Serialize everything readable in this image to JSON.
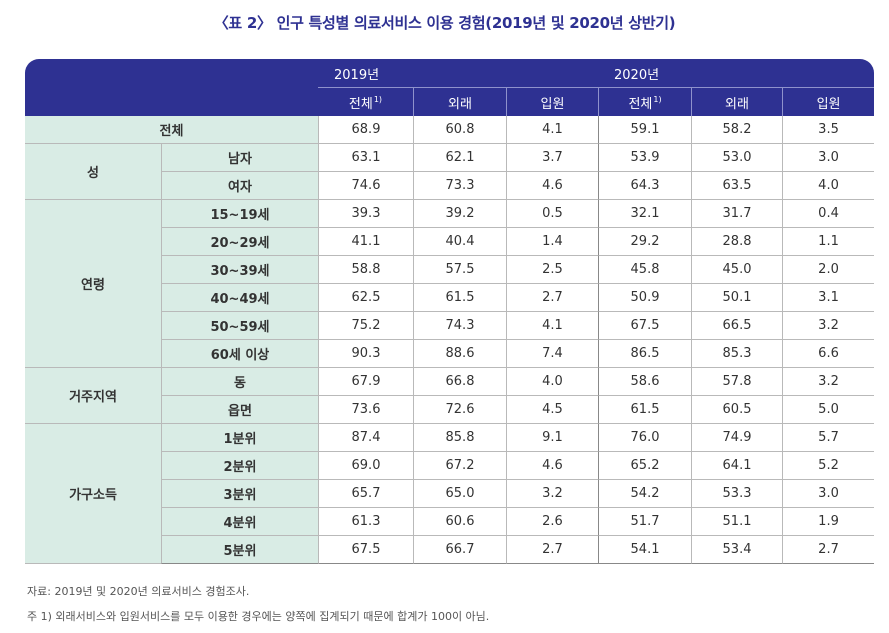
{
  "title": "〈표 2〉 인구 특성별 의료서비스 이용 경험(2019년 및 2020년 상반기)",
  "header": {
    "year_2019": "2019년",
    "year_2020": "2020년",
    "col_total": "전체",
    "col_total_sup": "1)",
    "col_outpatient": "외래",
    "col_inpatient": "입원"
  },
  "rows": {
    "total": {
      "label": "전체",
      "values": [
        "68.9",
        "60.8",
        "4.1",
        "59.1",
        "58.2",
        "3.5"
      ]
    },
    "sex": {
      "label": "성",
      "items": [
        {
          "label": "남자",
          "values": [
            "63.1",
            "62.1",
            "3.7",
            "53.9",
            "53.0",
            "3.0"
          ]
        },
        {
          "label": "여자",
          "values": [
            "74.6",
            "73.3",
            "4.6",
            "64.3",
            "63.5",
            "4.0"
          ]
        }
      ]
    },
    "age": {
      "label": "연령",
      "items": [
        {
          "label": "15~19세",
          "values": [
            "39.3",
            "39.2",
            "0.5",
            "32.1",
            "31.7",
            "0.4"
          ]
        },
        {
          "label": "20~29세",
          "values": [
            "41.1",
            "40.4",
            "1.4",
            "29.2",
            "28.8",
            "1.1"
          ]
        },
        {
          "label": "30~39세",
          "values": [
            "58.8",
            "57.5",
            "2.5",
            "45.8",
            "45.0",
            "2.0"
          ]
        },
        {
          "label": "40~49세",
          "values": [
            "62.5",
            "61.5",
            "2.7",
            "50.9",
            "50.1",
            "3.1"
          ]
        },
        {
          "label": "50~59세",
          "values": [
            "75.2",
            "74.3",
            "4.1",
            "67.5",
            "66.5",
            "3.2"
          ]
        },
        {
          "label": "60세 이상",
          "values": [
            "90.3",
            "88.6",
            "7.4",
            "86.5",
            "85.3",
            "6.6"
          ]
        }
      ]
    },
    "region": {
      "label": "거주지역",
      "items": [
        {
          "label": "동",
          "values": [
            "67.9",
            "66.8",
            "4.0",
            "58.6",
            "57.8",
            "3.2"
          ]
        },
        {
          "label": "읍면",
          "values": [
            "73.6",
            "72.6",
            "4.5",
            "61.5",
            "60.5",
            "5.0"
          ]
        }
      ]
    },
    "income": {
      "label": "가구소득",
      "items": [
        {
          "label": "1분위",
          "values": [
            "87.4",
            "85.8",
            "9.1",
            "76.0",
            "74.9",
            "5.7"
          ]
        },
        {
          "label": "2분위",
          "values": [
            "69.0",
            "67.2",
            "4.6",
            "65.2",
            "64.1",
            "5.2"
          ]
        },
        {
          "label": "3분위",
          "values": [
            "65.7",
            "65.0",
            "3.2",
            "54.2",
            "53.3",
            "3.0"
          ]
        },
        {
          "label": "4분위",
          "values": [
            "61.3",
            "60.6",
            "2.6",
            "51.7",
            "51.1",
            "1.9"
          ]
        },
        {
          "label": "5분위",
          "values": [
            "67.5",
            "66.7",
            "2.7",
            "54.1",
            "53.4",
            "2.7"
          ]
        }
      ]
    }
  },
  "notes": {
    "source": "자료: 2019년 및 2020년 의료서비스 경험조사.",
    "footnote": "주 1) 외래서비스와 입원서비스를 모두 이용한 경우에는 양쪽에 집계되기 때문에 합계가 100이 아님."
  }
}
